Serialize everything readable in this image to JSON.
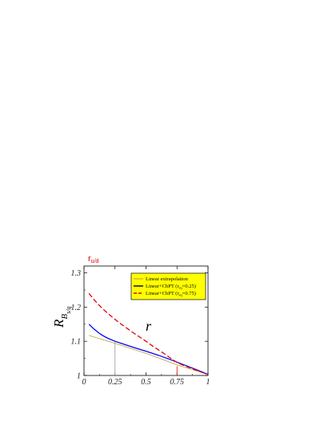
{
  "chart_data": {
    "type": "line",
    "title": "",
    "xlabel": "r",
    "ylabel_main": "R",
    "ylabel_sub": "B",
    "ylabel_subsub": "s/q",
    "top_annotation": "r",
    "top_annotation_sub": "u/d",
    "xlim": [
      0,
      1
    ],
    "ylim": [
      1,
      1.32
    ],
    "xticks": [
      0,
      0.25,
      0.5,
      0.75,
      1
    ],
    "xtick_labels": [
      "0",
      "0.25",
      "0.5",
      "0.75",
      "1"
    ],
    "yticks": [
      1,
      1.1,
      1.2,
      1.3
    ],
    "ytick_labels": [
      "1",
      "1.1",
      "1.2",
      "1.3"
    ],
    "legend_placement": "top-right",
    "legend_bg": "#ffff00",
    "series": [
      {
        "name": "Linear extrapolation",
        "color": "#b8a030",
        "style": "solid",
        "x": [
          0.04,
          0.25,
          0.5,
          0.75,
          1.0
        ],
        "y": [
          1.117,
          1.094,
          1.065,
          1.031,
          1.003
        ]
      },
      {
        "name": "Linear+ChPT (r",
        "name_sub": "sq",
        "name_tail": "=0.25)",
        "color": "#0000ff",
        "style": "solid",
        "x": [
          0.04,
          0.06,
          0.08,
          0.1,
          0.12,
          0.15,
          0.18,
          0.21,
          0.25,
          0.3,
          0.4,
          0.5,
          0.6,
          0.7,
          0.8,
          0.9,
          1.0
        ],
        "y": [
          1.15,
          1.143,
          1.136,
          1.13,
          1.124,
          1.117,
          1.111,
          1.106,
          1.1,
          1.094,
          1.082,
          1.071,
          1.059,
          1.046,
          1.032,
          1.018,
          1.003
        ]
      },
      {
        "name": "Linear+ChPT (r",
        "name_sub": "sq",
        "name_tail": "=0.75)",
        "color": "#e00000",
        "style": "dashed",
        "x": [
          0.04,
          0.08,
          0.12,
          0.16,
          0.2,
          0.25,
          0.3,
          0.35,
          0.4,
          0.45,
          0.5,
          0.55,
          0.6,
          0.65,
          0.7,
          0.75,
          0.8,
          0.9,
          1.0
        ],
        "y": [
          1.24,
          1.222,
          1.206,
          1.192,
          1.179,
          1.164,
          1.15,
          1.137,
          1.124,
          1.112,
          1.1,
          1.087,
          1.075,
          1.063,
          1.05,
          1.038,
          1.03,
          1.016,
          1.003
        ]
      }
    ],
    "markers": [
      {
        "x": 0.25,
        "color": "#999999",
        "y_top": 1.1
      },
      {
        "x": 0.75,
        "color": "#e00000",
        "y_top": 1.027
      }
    ]
  }
}
